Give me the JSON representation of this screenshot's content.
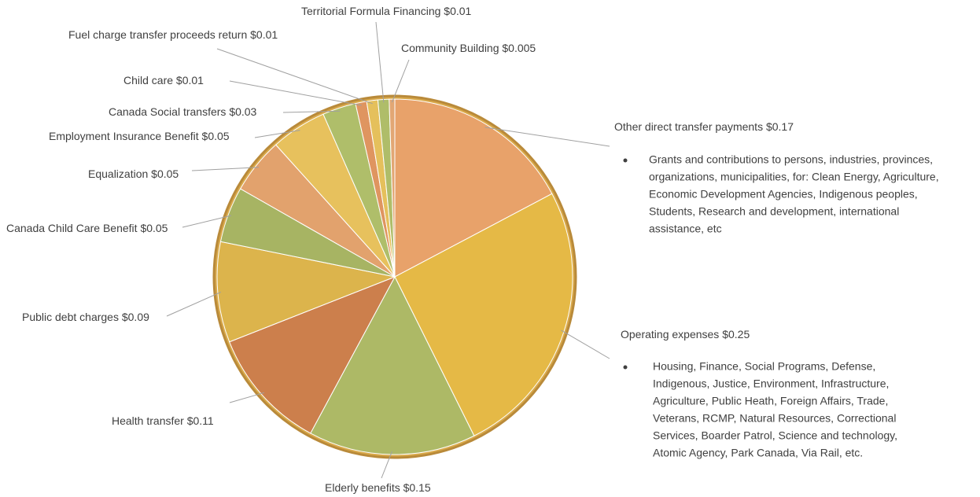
{
  "chart_data": {
    "type": "pie",
    "categories": [
      "Other direct transfer payments",
      "Operating expenses",
      "Elderly benefits",
      "Health transfer",
      "Public debt charges",
      "Canada Child Care Benefit",
      "Equalization",
      "Employment Insurance Benefit",
      "Canada Social transfers",
      "Child care",
      "Fuel charge transfer proceeds return",
      "Territorial Formula Financing",
      "Community Building"
    ],
    "values": [
      0.17,
      0.25,
      0.15,
      0.11,
      0.09,
      0.05,
      0.05,
      0.05,
      0.03,
      0.01,
      0.01,
      0.01,
      0.005
    ],
    "value_labels": [
      "$0.17",
      "$0.25",
      "$0.15",
      "$0.11",
      "$0.09",
      "$0.05",
      "$0.05",
      "$0.05",
      "$0.03",
      "$0.01",
      "$0.01",
      "$0.01",
      "$0.005"
    ],
    "colors": [
      "#e9a06e",
      "#e6bb45",
      "#a6bb6a",
      "#c9794c",
      "#dcb54c",
      "#9fb567",
      "#e3a072",
      "#e8c460",
      "#a9c06e",
      "#df9263",
      "#e6c35e",
      "#a8bf6d",
      "#e3a67a"
    ],
    "annotations": [
      {
        "lines": [
          "Grants and contributions to persons, industries, provinces,",
          "organizations, municipalities, for: Clean Energy, Agriculture,",
          "Economic Development Agencies, Indigenous peoples,",
          "Students, Research and development, international",
          "assistance, etc"
        ]
      },
      {
        "lines": [
          "Housing, Finance, Social Programs, Defense,",
          "Indigenous, Justice, Environment, Infrastructure,",
          "Agriculture, Public Heath, Foreign Affairs, Trade,",
          "Veterans, RCMP, Natural Resources, Correctional",
          "Services, Boarder Patrol, Science and technology,",
          "Atomic Agency, Park Canada, Via Rail, etc."
        ]
      }
    ]
  }
}
